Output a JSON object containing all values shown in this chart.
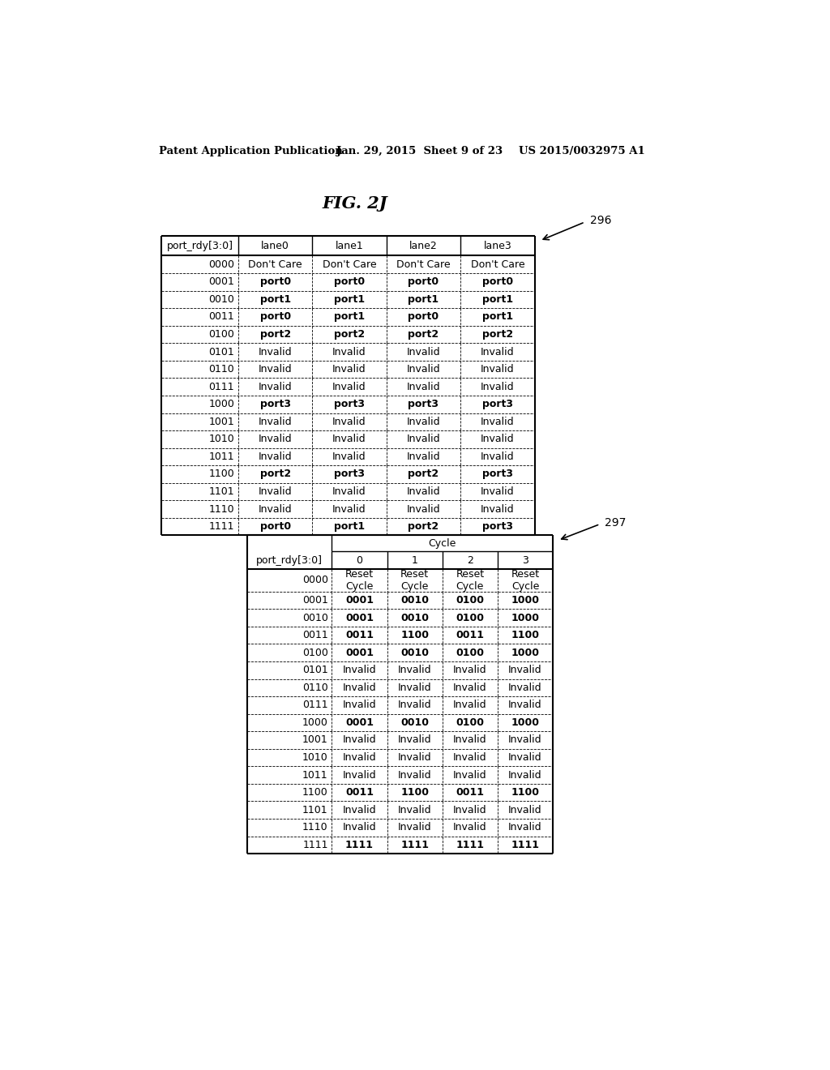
{
  "header_left": "Patent Application Publication",
  "header_mid": "Jan. 29, 2015  Sheet 9 of 23",
  "header_right": "US 2015/0032975 A1",
  "fig_label": "FIG. 2J",
  "table1_ref": "296",
  "table2_ref": "297",
  "table1_headers": [
    "port_rdy[3:0]",
    "lane0",
    "lane1",
    "lane2",
    "lane3"
  ],
  "table1_rows": [
    [
      "0000",
      "Don't Care",
      "Don't Care",
      "Don't Care",
      "Don't Care"
    ],
    [
      "0001",
      "port0",
      "port0",
      "port0",
      "port0"
    ],
    [
      "0010",
      "port1",
      "port1",
      "port1",
      "port1"
    ],
    [
      "0011",
      "port0",
      "port1",
      "port0",
      "port1"
    ],
    [
      "0100",
      "port2",
      "port2",
      "port2",
      "port2"
    ],
    [
      "0101",
      "Invalid",
      "Invalid",
      "Invalid",
      "Invalid"
    ],
    [
      "0110",
      "Invalid",
      "Invalid",
      "Invalid",
      "Invalid"
    ],
    [
      "0111",
      "Invalid",
      "Invalid",
      "Invalid",
      "Invalid"
    ],
    [
      "1000",
      "port3",
      "port3",
      "port3",
      "port3"
    ],
    [
      "1001",
      "Invalid",
      "Invalid",
      "Invalid",
      "Invalid"
    ],
    [
      "1010",
      "Invalid",
      "Invalid",
      "Invalid",
      "Invalid"
    ],
    [
      "1011",
      "Invalid",
      "Invalid",
      "Invalid",
      "Invalid"
    ],
    [
      "1100",
      "port2",
      "port3",
      "port2",
      "port3"
    ],
    [
      "1101",
      "Invalid",
      "Invalid",
      "Invalid",
      "Invalid"
    ],
    [
      "1110",
      "Invalid",
      "Invalid",
      "Invalid",
      "Invalid"
    ],
    [
      "1111",
      "port0",
      "port1",
      "port2",
      "port3"
    ]
  ],
  "table1_bold_rows": [
    1,
    2,
    3,
    4,
    8,
    12,
    15
  ],
  "table2_col_header": "Cycle",
  "table2_headers": [
    "port_rdy[3:0]",
    "0",
    "1",
    "2",
    "3"
  ],
  "table2_rows": [
    [
      "0000",
      "Reset\nCycle",
      "Reset\nCycle",
      "Reset\nCycle",
      "Reset\nCycle"
    ],
    [
      "0001",
      "0001",
      "0010",
      "0100",
      "1000"
    ],
    [
      "0010",
      "0001",
      "0010",
      "0100",
      "1000"
    ],
    [
      "0011",
      "0011",
      "1100",
      "0011",
      "1100"
    ],
    [
      "0100",
      "0001",
      "0010",
      "0100",
      "1000"
    ],
    [
      "0101",
      "Invalid",
      "Invalid",
      "Invalid",
      "Invalid"
    ],
    [
      "0110",
      "Invalid",
      "Invalid",
      "Invalid",
      "Invalid"
    ],
    [
      "0111",
      "Invalid",
      "Invalid",
      "Invalid",
      "Invalid"
    ],
    [
      "1000",
      "0001",
      "0010",
      "0100",
      "1000"
    ],
    [
      "1001",
      "Invalid",
      "Invalid",
      "Invalid",
      "Invalid"
    ],
    [
      "1010",
      "Invalid",
      "Invalid",
      "Invalid",
      "Invalid"
    ],
    [
      "1011",
      "Invalid",
      "Invalid",
      "Invalid",
      "Invalid"
    ],
    [
      "1100",
      "0011",
      "1100",
      "0011",
      "1100"
    ],
    [
      "1101",
      "Invalid",
      "Invalid",
      "Invalid",
      "Invalid"
    ],
    [
      "1110",
      "Invalid",
      "Invalid",
      "Invalid",
      "Invalid"
    ],
    [
      "1111",
      "1111",
      "1111",
      "1111",
      "1111"
    ]
  ],
  "table2_bold_rows": [
    1,
    2,
    3,
    4,
    8,
    12,
    15
  ],
  "bg_color": "#ffffff",
  "text_color": "#000000"
}
